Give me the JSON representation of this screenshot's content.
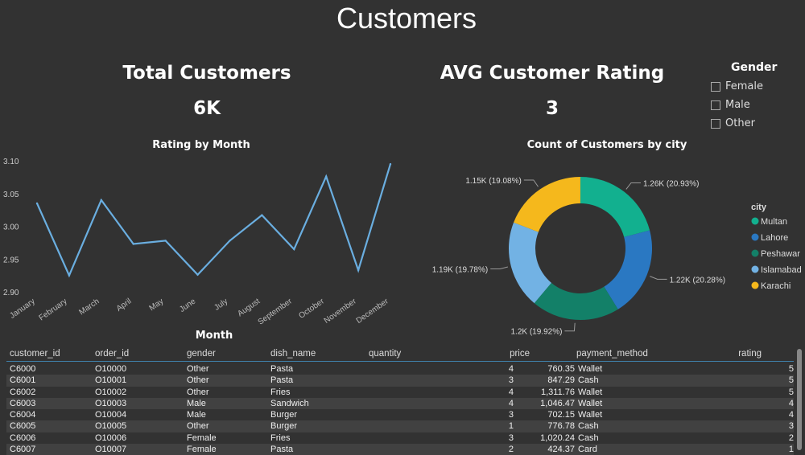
{
  "title": "Customers",
  "kpis": [
    {
      "label": "Total Customers",
      "value": "6K"
    },
    {
      "label": "AVG Customer Rating",
      "value": "3"
    }
  ],
  "gender_filter": {
    "title": "Gender",
    "options": [
      "Female",
      "Male",
      "Other"
    ]
  },
  "chart_data": [
    {
      "type": "line",
      "title": "Rating by Month",
      "xlabel": "Month",
      "ylabel": "",
      "categories": [
        "January",
        "February",
        "March",
        "April",
        "May",
        "June",
        "July",
        "August",
        "September",
        "October",
        "November",
        "December"
      ],
      "values": [
        3.035,
        2.925,
        3.04,
        2.973,
        2.978,
        2.926,
        2.978,
        3.017,
        2.965,
        3.076,
        2.933,
        3.095
      ],
      "ylim": [
        2.9,
        3.1
      ],
      "yticks": [
        "3.10",
        "3.05",
        "3.00",
        "2.95",
        "2.90"
      ],
      "color": "#6aaee0"
    },
    {
      "type": "pie",
      "title": "Count of Customers by city",
      "legend_title": "city",
      "legend_placement": "right",
      "slices": [
        {
          "name": "Multan",
          "value": 1260,
          "percent": 20.93,
          "label": "1.26K (20.93%)",
          "color": "#12b08f"
        },
        {
          "name": "Lahore",
          "value": 1220,
          "percent": 20.28,
          "label": "1.22K (20.28%)",
          "color": "#2a78c2"
        },
        {
          "name": "Peshawar",
          "value": 1200,
          "percent": 19.92,
          "label": "1.2K (19.92%)",
          "color": "#138068"
        },
        {
          "name": "Islamabad",
          "value": 1190,
          "percent": 19.78,
          "label": "1.19K (19.78%)",
          "color": "#72b2e4"
        },
        {
          "name": "Karachi",
          "value": 1150,
          "percent": 19.08,
          "label": "1.15K (19.08%)",
          "color": "#f5b81c"
        }
      ]
    }
  ],
  "table": {
    "headers": [
      "customer_id",
      "order_id",
      "gender",
      "dish_name",
      "quantity",
      "price",
      "payment_method",
      "rating"
    ],
    "rows": [
      [
        "C6000",
        "O10000",
        "Other",
        "Pasta",
        "4",
        "760.35",
        "Wallet",
        "5"
      ],
      [
        "C6001",
        "O10001",
        "Other",
        "Pasta",
        "3",
        "847.29",
        "Cash",
        "5"
      ],
      [
        "C6002",
        "O10002",
        "Other",
        "Fries",
        "4",
        "1,311.76",
        "Wallet",
        "5"
      ],
      [
        "C6003",
        "O10003",
        "Male",
        "Sandwich",
        "4",
        "1,046.47",
        "Wallet",
        "4"
      ],
      [
        "C6004",
        "O10004",
        "Male",
        "Burger",
        "3",
        "702.15",
        "Wallet",
        "4"
      ],
      [
        "C6005",
        "O10005",
        "Other",
        "Burger",
        "1",
        "776.78",
        "Cash",
        "3"
      ],
      [
        "C6006",
        "O10006",
        "Female",
        "Fries",
        "3",
        "1,020.24",
        "Cash",
        "2"
      ],
      [
        "C6007",
        "O10007",
        "Female",
        "Pasta",
        "2",
        "424.37",
        "Card",
        "1"
      ]
    ]
  }
}
